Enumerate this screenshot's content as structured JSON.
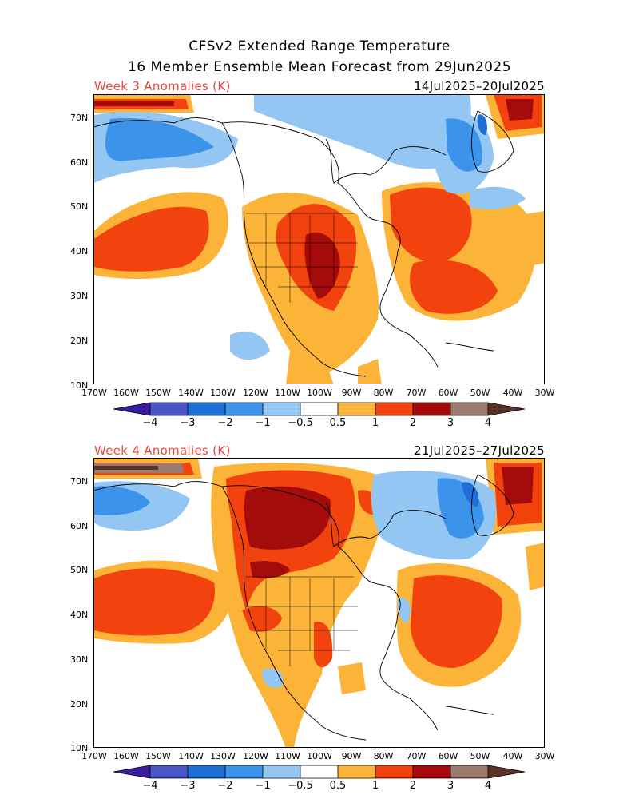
{
  "title_line1": "CFSv2 Extended Range Temperature",
  "title_line2": "16 Member Ensemble Mean Forecast from 29Jun2025",
  "panels": [
    {
      "label": "Week 3 Anomalies (K)",
      "dates": "14Jul2025–20Jul2025"
    },
    {
      "label": "Week 4 Anomalies (K)",
      "dates": "21Jul2025–27Jul2025"
    }
  ],
  "lat_labels": [
    "70N",
    "60N",
    "50N",
    "40N",
    "30N",
    "20N",
    "10N"
  ],
  "lon_labels": [
    "170W",
    "160W",
    "150W",
    "140W",
    "130W",
    "120W",
    "110W",
    "100W",
    "90W",
    "80W",
    "70W",
    "60W",
    "50W",
    "40W",
    "30W"
  ],
  "colorbar": {
    "labels": [
      "−4",
      "−3",
      "−2",
      "−1",
      "−0.5",
      "0.5",
      "1",
      "2",
      "3",
      "4"
    ],
    "colors": [
      "#3a1ea0",
      "#4a55c8",
      "#1f6fd8",
      "#3c93ea",
      "#93c6f3",
      "#ffffff",
      "#fbb338",
      "#f2430e",
      "#a40b0b",
      "#9b7a70",
      "#5a3426"
    ]
  }
}
